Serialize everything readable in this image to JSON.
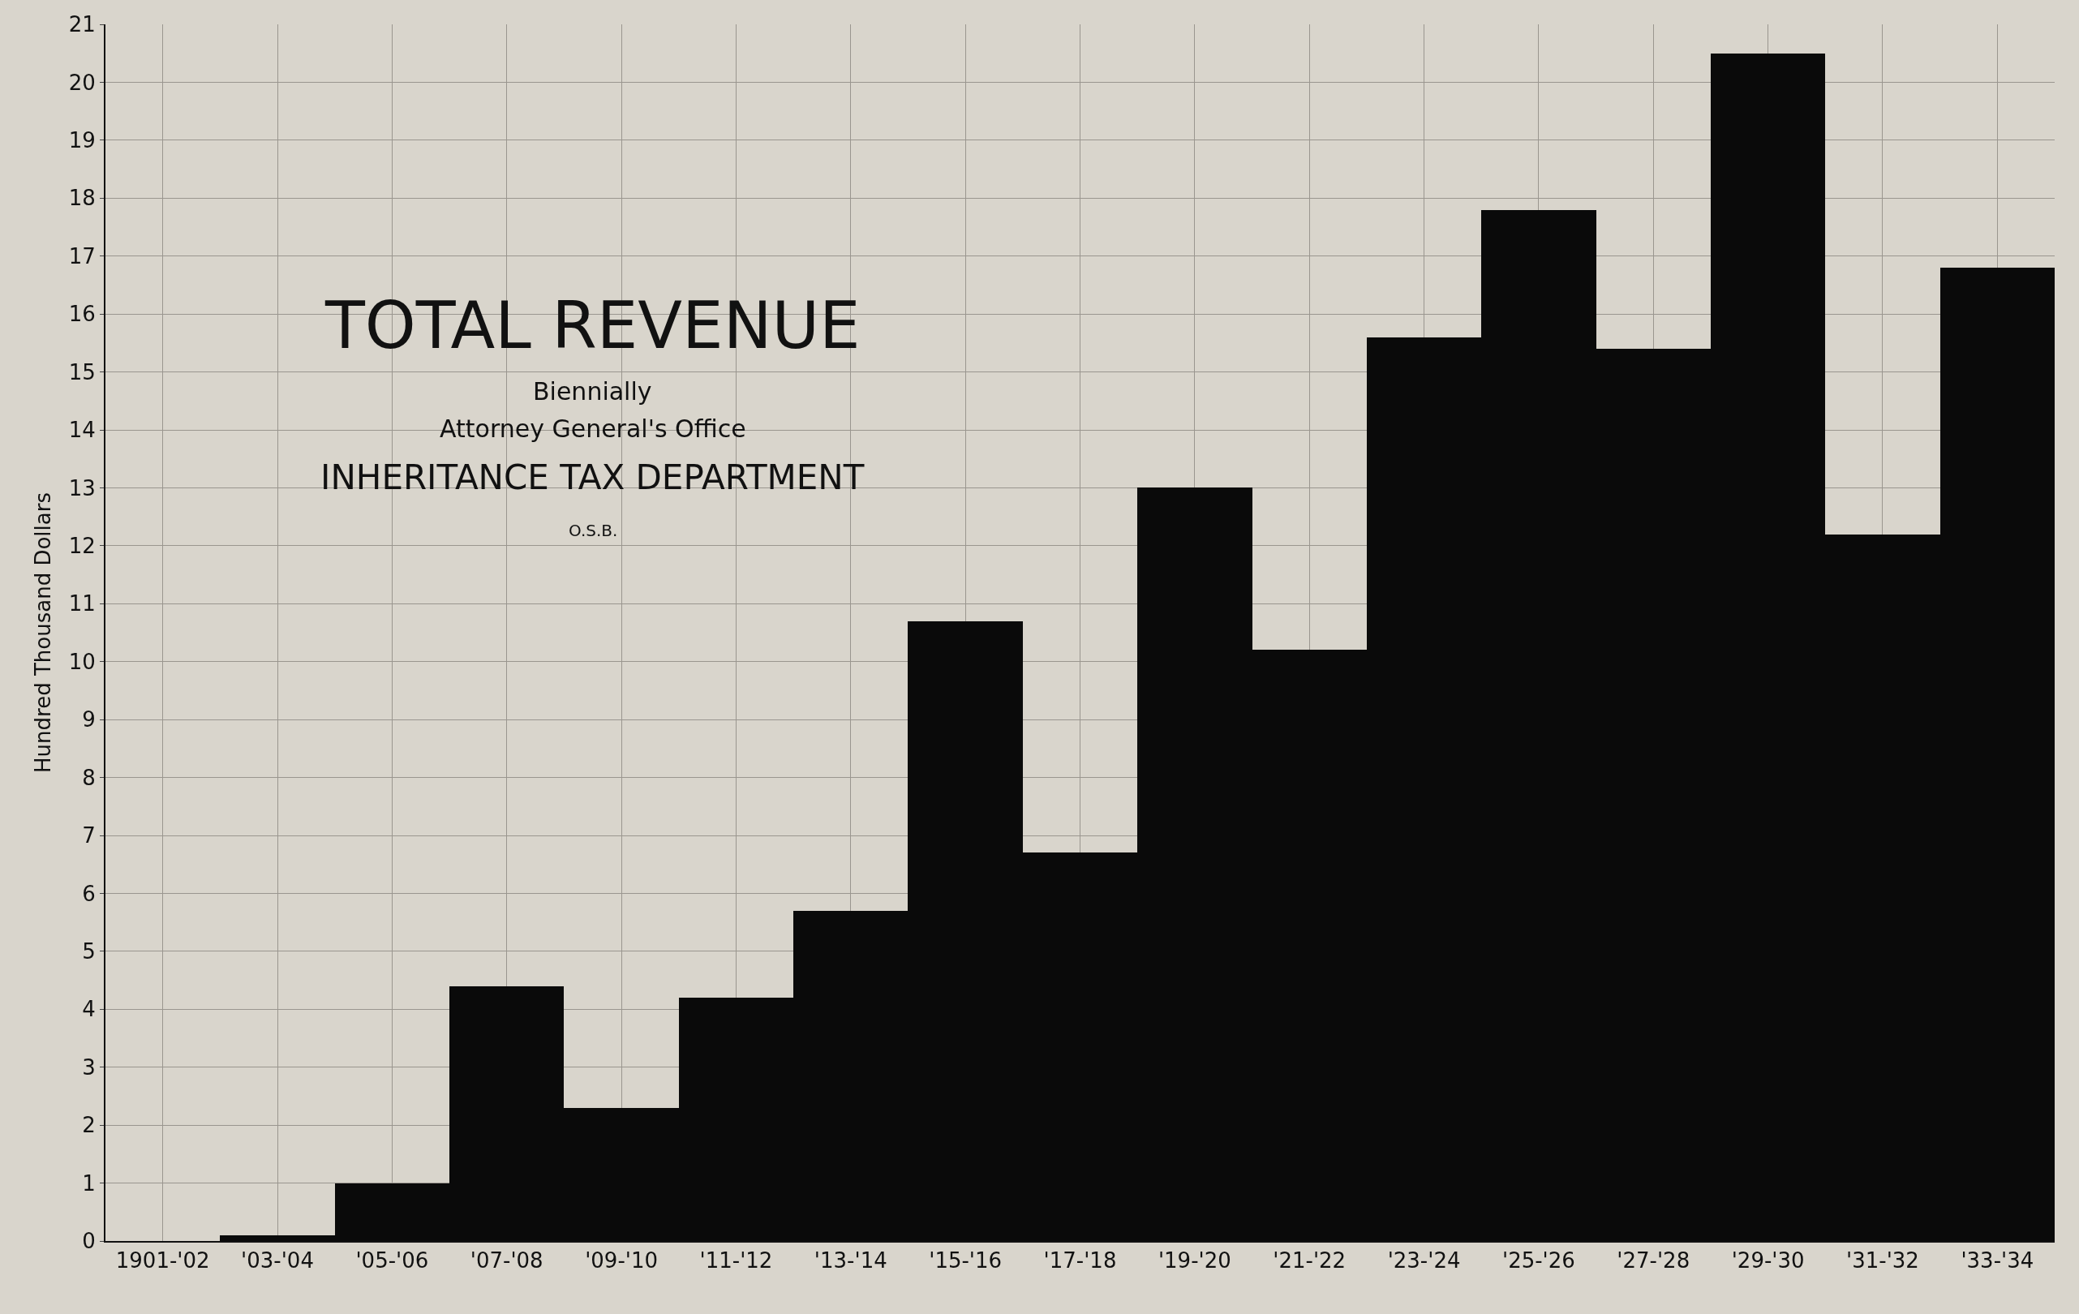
{
  "chart_data": {
    "type": "bar",
    "title": "TOTAL REVENUE",
    "subtitle": "Biennially",
    "annotations": [
      "Attorney General's Office",
      "INHERITANCE TAX DEPARTMENT",
      "O.S.B."
    ],
    "ylabel": "Hundred Thousand Dollars",
    "categories": [
      "1901-'02",
      "'03-'04",
      "'05-'06",
      "'07-'08",
      "'09-'10",
      "'11-'12",
      "'13-'14",
      "'15-'16",
      "'17-'18",
      "'19-'20",
      "'21-'22",
      "'23-'24",
      "'25-'26",
      "'27-'28",
      "'29-'30",
      "'31-'32",
      "'33-'34"
    ],
    "values": [
      0,
      0.1,
      1.0,
      4.4,
      2.3,
      4.2,
      5.7,
      10.7,
      6.7,
      13.0,
      10.2,
      15.6,
      17.8,
      15.4,
      20.5,
      12.2,
      16.8
    ],
    "color": "#0a0a0a",
    "ylim": [
      0,
      21
    ],
    "yticks": [
      0,
      1,
      2,
      3,
      4,
      5,
      6,
      7,
      8,
      9,
      10,
      11,
      12,
      13,
      14,
      15,
      16,
      17,
      18,
      19,
      20,
      21
    ],
    "grid": true
  }
}
